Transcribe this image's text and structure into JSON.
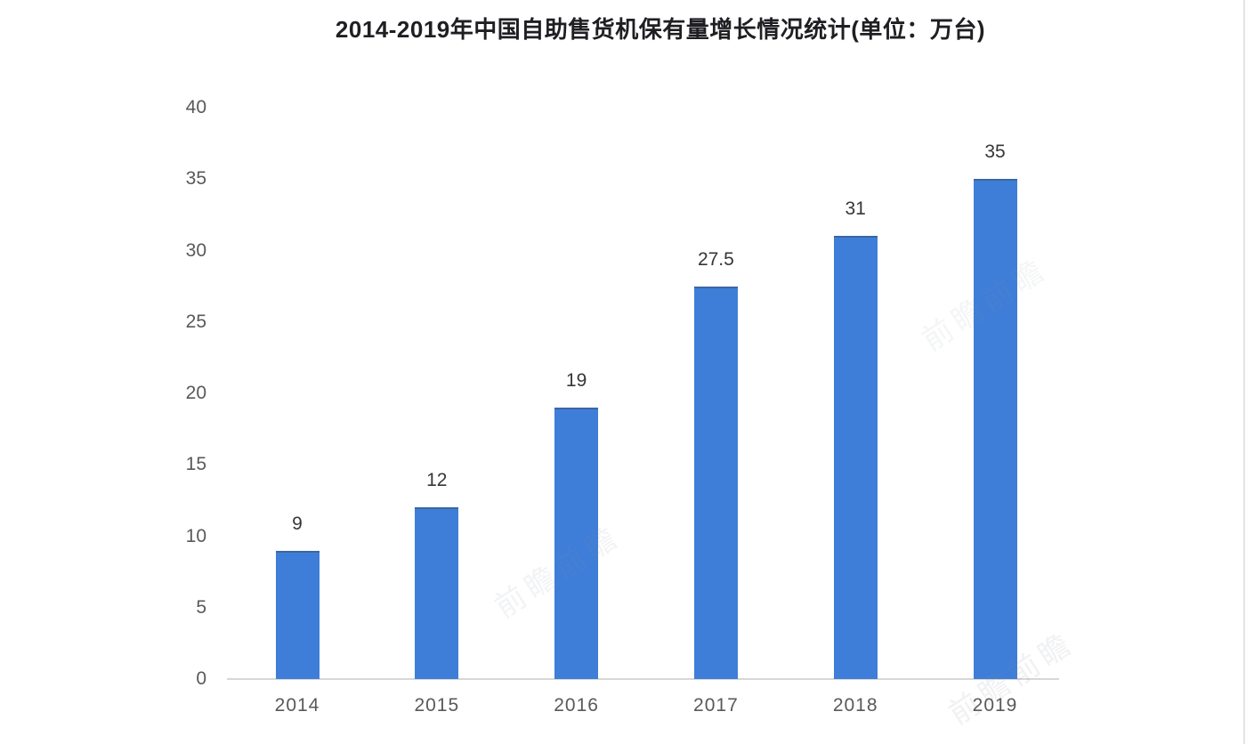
{
  "title": "2014-2019年中国自助售货机保有量增长情况统计(单位：万台)",
  "chart_data": {
    "type": "bar",
    "title": "2014-2019年中国自助售货机保有量增长情况统计(单位：万台)",
    "unit_note": "单位：万台",
    "categories": [
      "2014",
      "2015",
      "2016",
      "2017",
      "2018",
      "2019"
    ],
    "values": [
      9,
      12,
      19,
      27.5,
      31,
      35
    ],
    "data_labels": [
      "9",
      "12",
      "19",
      "27.5",
      "31",
      "35"
    ],
    "xlabel": "",
    "ylabel": "",
    "y_ticks": [
      0,
      5,
      10,
      15,
      20,
      25,
      30,
      35,
      40
    ],
    "ylim": [
      0,
      40
    ],
    "grid": false,
    "legend_position": "none",
    "colors": {
      "bar": "#3F7ED8",
      "axis_line": "#D7D7D7",
      "tick_label": "#595959",
      "data_label": "#363636",
      "title": "#1F1F23",
      "background": "#FFFFFF"
    }
  },
  "watermark": {
    "text": "前瞻"
  }
}
